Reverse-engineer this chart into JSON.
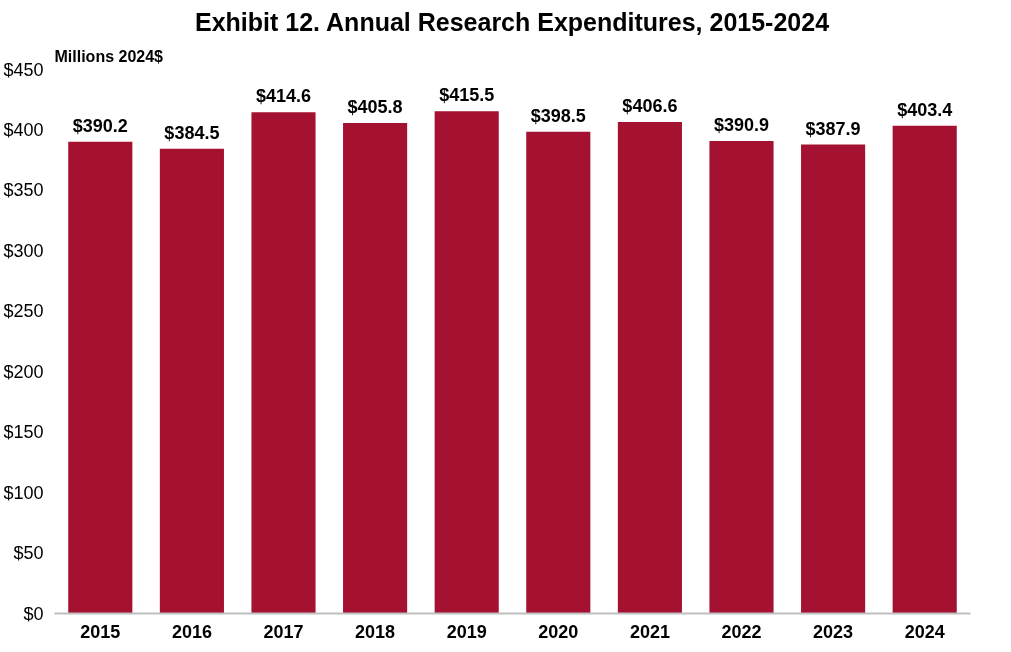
{
  "chart_data": {
    "type": "bar",
    "title": "Exhibit 12. Annual Research Expenditures, 2015-2024",
    "ylabel": "Millions 2024$",
    "categories": [
      "2015",
      "2016",
      "2017",
      "2018",
      "2019",
      "2020",
      "2021",
      "2022",
      "2023",
      "2024"
    ],
    "values": [
      390.2,
      384.5,
      414.6,
      405.8,
      415.5,
      398.5,
      406.6,
      390.9,
      387.9,
      403.4
    ],
    "value_labels": [
      "$390.2",
      "$384.5",
      "$414.6",
      "$405.8",
      "$415.5",
      "$398.5",
      "$406.6",
      "$390.9",
      "$387.9",
      "$403.4"
    ],
    "color": "#a51130",
    "ylim": [
      0,
      450
    ],
    "yticks": [
      {
        "value": 0,
        "label": "$0"
      },
      {
        "value": 50,
        "label": "$50"
      },
      {
        "value": 100,
        "label": "$100"
      },
      {
        "value": 150,
        "label": "$150"
      },
      {
        "value": 200,
        "label": "$200"
      },
      {
        "value": 250,
        "label": "$250"
      },
      {
        "value": 300,
        "label": "$300"
      },
      {
        "value": 350,
        "label": "$350"
      },
      {
        "value": 400,
        "label": "$400"
      },
      {
        "value": 450,
        "label": "$450"
      }
    ],
    "grid": false
  }
}
